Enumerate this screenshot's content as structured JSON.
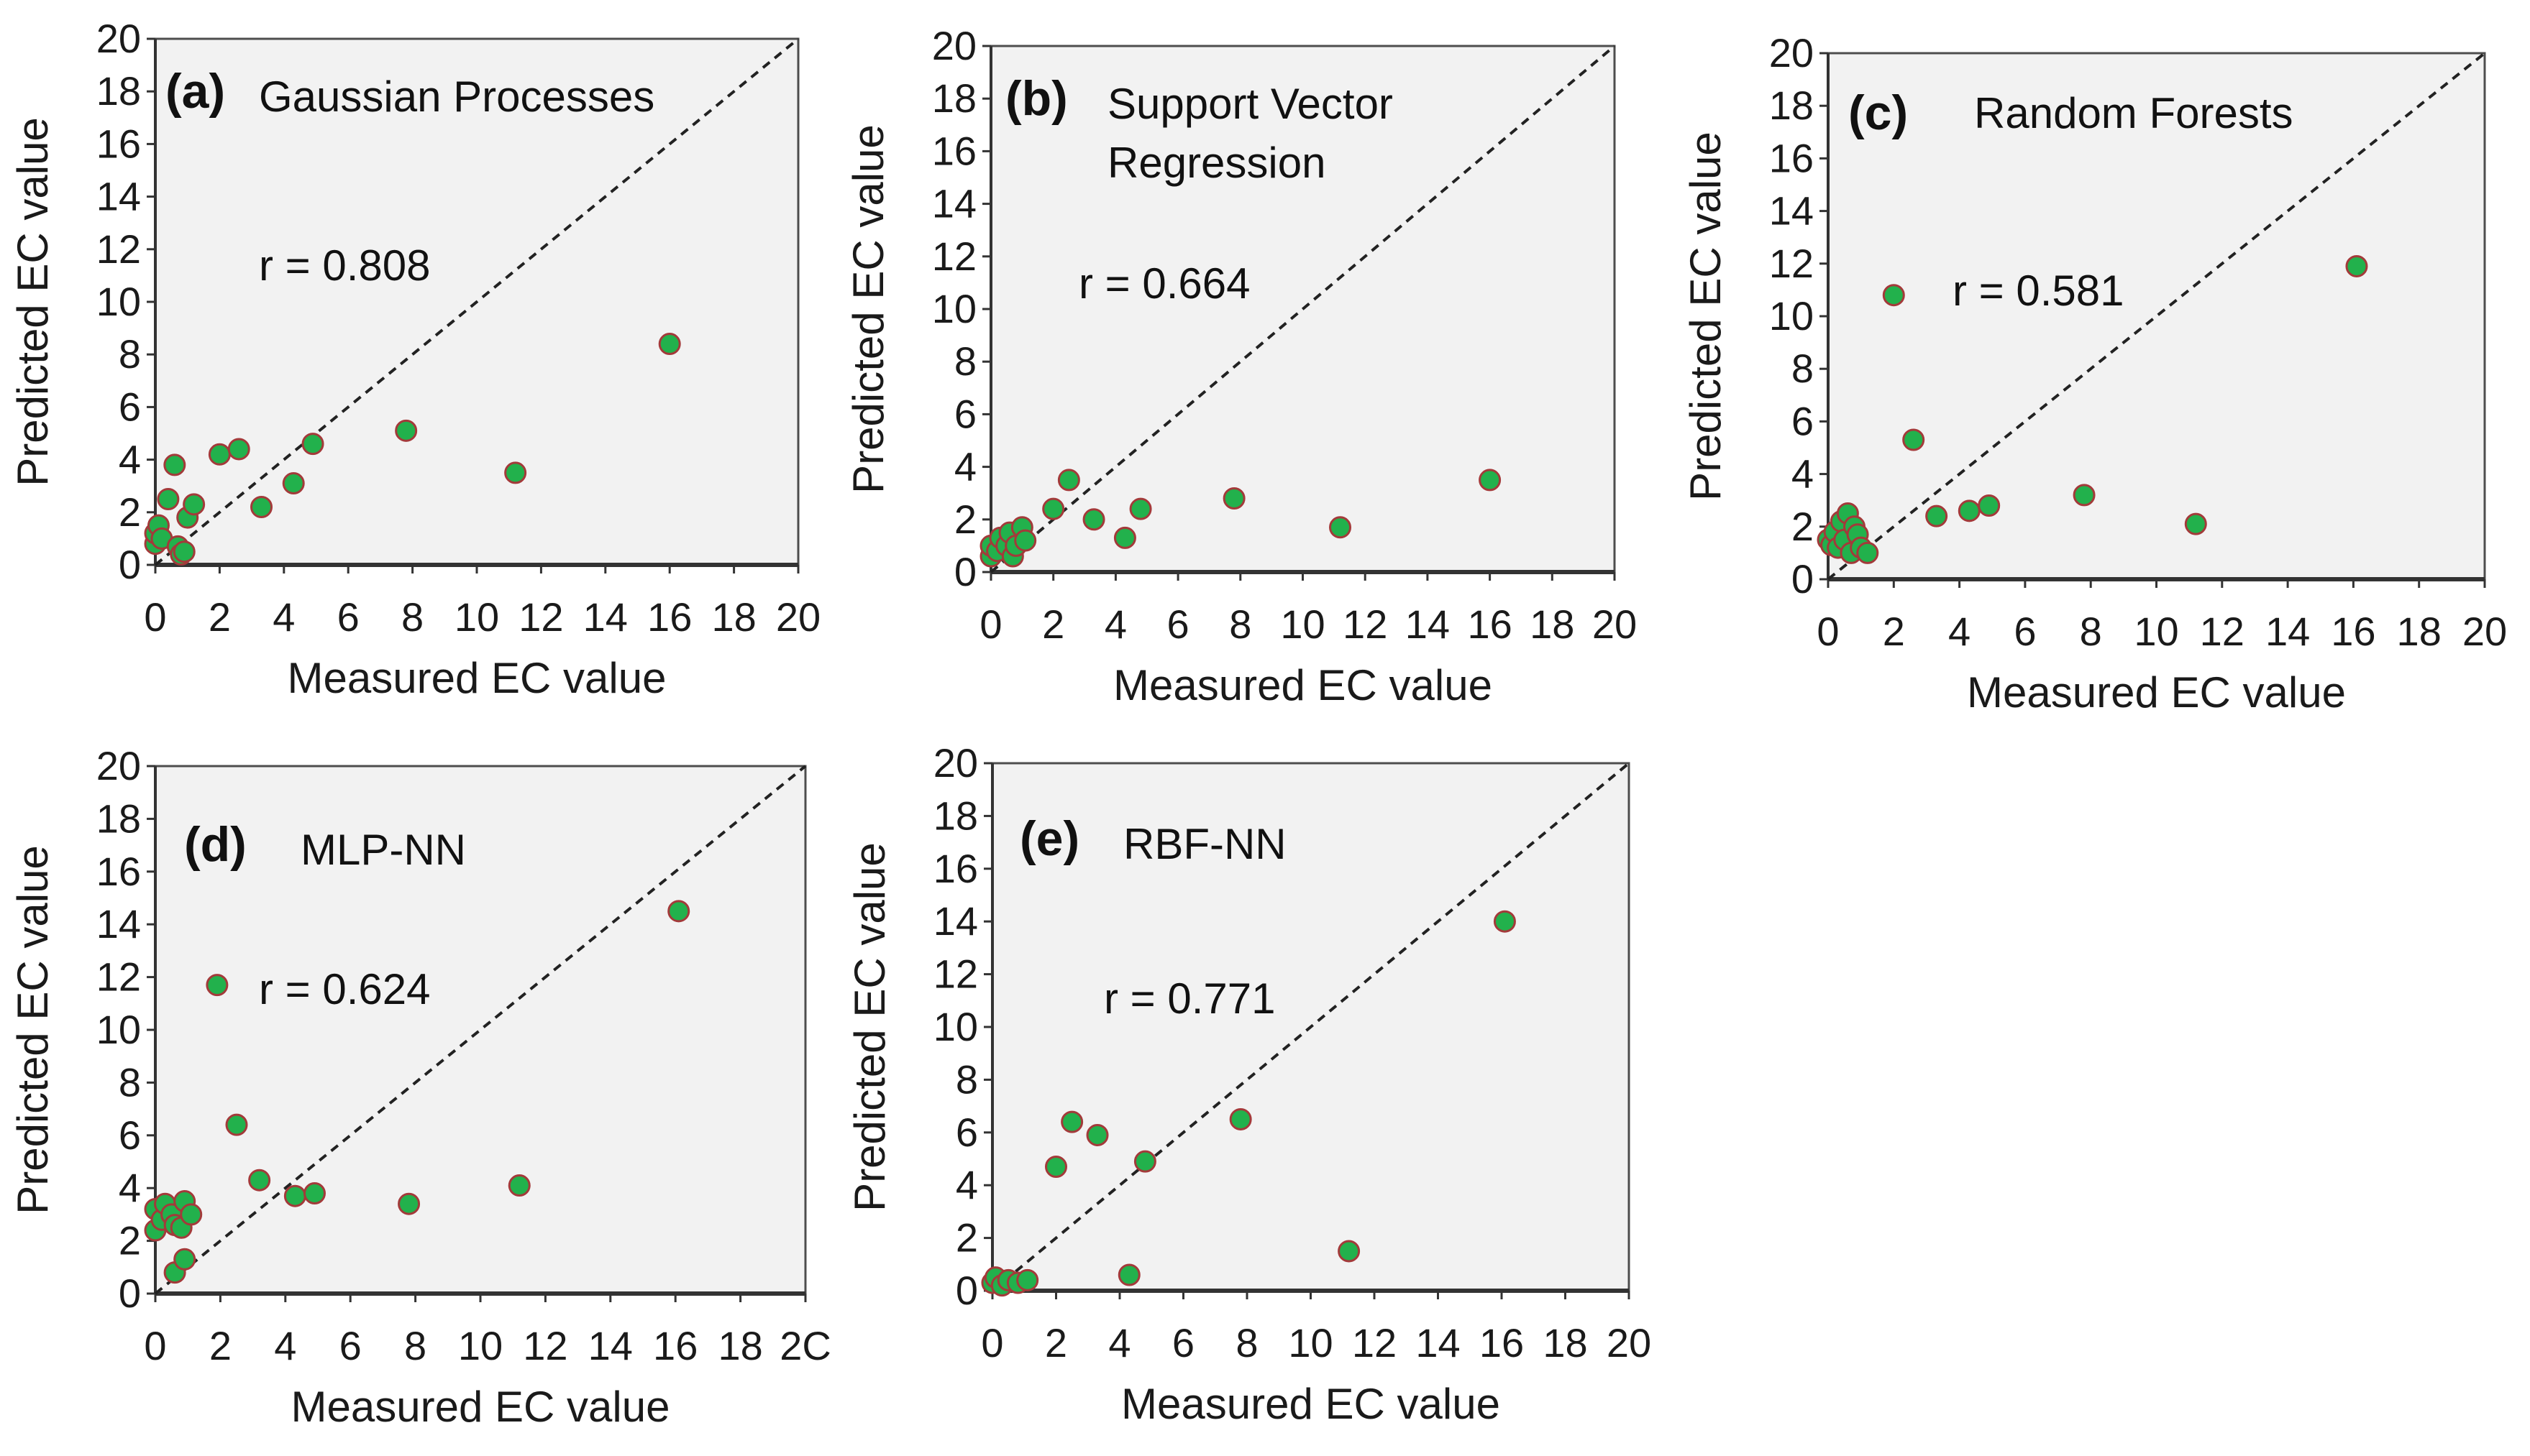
{
  "chart_data": [
    {
      "type": "scatter",
      "panel_tag": "(a)",
      "title_lines": [
        "Gaussian Processes"
      ],
      "r_label": "r = 0.808",
      "xlabel": "Measured EC value",
      "ylabel": "Predicted EC value",
      "xlim": [
        0,
        20
      ],
      "ylim": [
        0,
        20
      ],
      "xticks": [
        "0",
        "2",
        "4",
        "6",
        "8",
        "10",
        "12",
        "14",
        "16",
        "18",
        "20"
      ],
      "yticks": [
        "0",
        "2",
        "4",
        "6",
        "8",
        "10",
        "12",
        "14",
        "16",
        "18",
        "20"
      ],
      "reference_line": "y = x",
      "points": [
        {
          "x": 0.0,
          "y": 0.8
        },
        {
          "x": 0.0,
          "y": 1.2
        },
        {
          "x": 0.1,
          "y": 1.5
        },
        {
          "x": 0.2,
          "y": 1.0
        },
        {
          "x": 0.4,
          "y": 2.5
        },
        {
          "x": 0.6,
          "y": 3.8
        },
        {
          "x": 0.7,
          "y": 0.7
        },
        {
          "x": 0.8,
          "y": 0.4
        },
        {
          "x": 0.9,
          "y": 0.5
        },
        {
          "x": 1.0,
          "y": 1.8
        },
        {
          "x": 1.2,
          "y": 2.3
        },
        {
          "x": 2.0,
          "y": 4.2
        },
        {
          "x": 2.6,
          "y": 4.4
        },
        {
          "x": 3.3,
          "y": 2.2
        },
        {
          "x": 4.3,
          "y": 3.1
        },
        {
          "x": 4.9,
          "y": 4.6
        },
        {
          "x": 7.8,
          "y": 5.1
        },
        {
          "x": 11.2,
          "y": 3.5
        },
        {
          "x": 16.0,
          "y": 8.4
        }
      ]
    },
    {
      "type": "scatter",
      "panel_tag": "(b)",
      "title_lines": [
        "Support Vector",
        "Regression"
      ],
      "r_label": "r = 0.664",
      "xlabel": "Measured EC value",
      "ylabel": "Predicted EC value",
      "xlim": [
        0,
        20
      ],
      "ylim": [
        0,
        20
      ],
      "xticks": [
        "0",
        "2",
        "4",
        "6",
        "8",
        "10",
        "12",
        "14",
        "16",
        "18",
        "20"
      ],
      "yticks": [
        "0",
        "2",
        "4",
        "6",
        "8",
        "10",
        "12",
        "14",
        "16",
        "18",
        "20"
      ],
      "reference_line": "y = x",
      "points": [
        {
          "x": 0.0,
          "y": 0.6
        },
        {
          "x": 0.0,
          "y": 1.0
        },
        {
          "x": 0.2,
          "y": 0.8
        },
        {
          "x": 0.3,
          "y": 1.3
        },
        {
          "x": 0.5,
          "y": 1.0
        },
        {
          "x": 0.6,
          "y": 1.5
        },
        {
          "x": 0.7,
          "y": 0.6
        },
        {
          "x": 0.8,
          "y": 1.0
        },
        {
          "x": 1.0,
          "y": 1.7
        },
        {
          "x": 1.1,
          "y": 1.2
        },
        {
          "x": 2.0,
          "y": 2.4
        },
        {
          "x": 2.5,
          "y": 3.5
        },
        {
          "x": 3.3,
          "y": 2.0
        },
        {
          "x": 4.3,
          "y": 1.3
        },
        {
          "x": 4.8,
          "y": 2.4
        },
        {
          "x": 7.8,
          "y": 2.8
        },
        {
          "x": 11.2,
          "y": 1.7
        },
        {
          "x": 16.0,
          "y": 3.5
        }
      ]
    },
    {
      "type": "scatter",
      "panel_tag": "(c)",
      "title_lines": [
        "Random Forests"
      ],
      "r_label": "r = 0.581",
      "xlabel": "Measured EC value",
      "ylabel": "Predicted EC value",
      "xlim": [
        0,
        20
      ],
      "ylim": [
        0,
        20
      ],
      "xticks": [
        "0",
        "2",
        "4",
        "6",
        "8",
        "10",
        "12",
        "14",
        "16",
        "18",
        "20"
      ],
      "yticks": [
        "0",
        "2",
        "4",
        "6",
        "8",
        "10",
        "12",
        "14",
        "16",
        "18",
        "20"
      ],
      "reference_line": "y = x",
      "points": [
        {
          "x": 0.0,
          "y": 1.5
        },
        {
          "x": 0.1,
          "y": 1.3
        },
        {
          "x": 0.2,
          "y": 1.8
        },
        {
          "x": 0.3,
          "y": 1.2
        },
        {
          "x": 0.4,
          "y": 2.2
        },
        {
          "x": 0.5,
          "y": 1.5
        },
        {
          "x": 0.6,
          "y": 2.5
        },
        {
          "x": 0.7,
          "y": 1.0
        },
        {
          "x": 0.8,
          "y": 2.0
        },
        {
          "x": 0.9,
          "y": 1.7
        },
        {
          "x": 1.0,
          "y": 1.2
        },
        {
          "x": 1.2,
          "y": 1.0
        },
        {
          "x": 2.0,
          "y": 10.8
        },
        {
          "x": 2.6,
          "y": 5.3
        },
        {
          "x": 3.3,
          "y": 2.4
        },
        {
          "x": 4.3,
          "y": 2.6
        },
        {
          "x": 4.9,
          "y": 2.8
        },
        {
          "x": 7.8,
          "y": 3.2
        },
        {
          "x": 11.2,
          "y": 2.1
        },
        {
          "x": 16.1,
          "y": 11.9
        }
      ]
    },
    {
      "type": "scatter",
      "panel_tag": "(d)",
      "title_lines": [
        "MLP-NN"
      ],
      "r_label": "r = 0.624",
      "xlabel": "Measured EC value",
      "ylabel": "Predicted EC value",
      "xlim": [
        0,
        20
      ],
      "ylim": [
        0,
        20
      ],
      "xticks": [
        "0",
        "2",
        "4",
        "6",
        "8",
        "10",
        "12",
        "14",
        "16",
        "18",
        "2С"
      ],
      "yticks": [
        "0",
        "2",
        "4",
        "6",
        "8",
        "10",
        "12",
        "14",
        "16",
        "18",
        "20"
      ],
      "reference_line": "y = x",
      "points": [
        {
          "x": 0.0,
          "y": 2.4
        },
        {
          "x": 0.0,
          "y": 3.2
        },
        {
          "x": 0.2,
          "y": 2.8
        },
        {
          "x": 0.3,
          "y": 3.4
        },
        {
          "x": 0.5,
          "y": 3.0
        },
        {
          "x": 0.6,
          "y": 2.6
        },
        {
          "x": 0.6,
          "y": 0.8
        },
        {
          "x": 0.8,
          "y": 2.5
        },
        {
          "x": 0.9,
          "y": 3.5
        },
        {
          "x": 0.9,
          "y": 1.3
        },
        {
          "x": 1.1,
          "y": 3.0
        },
        {
          "x": 1.9,
          "y": 11.7
        },
        {
          "x": 2.5,
          "y": 6.4
        },
        {
          "x": 3.2,
          "y": 4.3
        },
        {
          "x": 4.3,
          "y": 3.7
        },
        {
          "x": 4.9,
          "y": 3.8
        },
        {
          "x": 7.8,
          "y": 3.4
        },
        {
          "x": 11.2,
          "y": 4.1
        },
        {
          "x": 16.1,
          "y": 14.5
        }
      ]
    },
    {
      "type": "scatter",
      "panel_tag": "(e)",
      "title_lines": [
        "RBF-NN"
      ],
      "r_label": "r = 0.771",
      "xlabel": "Measured EC value",
      "ylabel": "Predicted EC value",
      "xlim": [
        0,
        20
      ],
      "ylim": [
        0,
        20
      ],
      "xticks": [
        "0",
        "2",
        "4",
        "6",
        "8",
        "10",
        "12",
        "14",
        "16",
        "18",
        "20"
      ],
      "yticks": [
        "0",
        "2",
        "4",
        "6",
        "8",
        "10",
        "12",
        "14",
        "16",
        "18",
        "20"
      ],
      "reference_line": "y = x",
      "points": [
        {
          "x": 0.0,
          "y": 0.3
        },
        {
          "x": 0.1,
          "y": 0.5
        },
        {
          "x": 0.3,
          "y": 0.2
        },
        {
          "x": 0.5,
          "y": 0.4
        },
        {
          "x": 0.8,
          "y": 0.3
        },
        {
          "x": 1.1,
          "y": 0.4
        },
        {
          "x": 2.0,
          "y": 4.7
        },
        {
          "x": 2.5,
          "y": 6.4
        },
        {
          "x": 3.3,
          "y": 5.9
        },
        {
          "x": 4.3,
          "y": 0.6
        },
        {
          "x": 4.8,
          "y": 4.9
        },
        {
          "x": 7.8,
          "y": 6.5
        },
        {
          "x": 11.2,
          "y": 1.5
        },
        {
          "x": 16.1,
          "y": 14.0
        }
      ]
    }
  ],
  "style": {
    "panel_background": "#f2f2f2",
    "point_fill": "#22b14c",
    "point_stroke": "#a33a3a",
    "axis_color": "#4d4d4d",
    "reference_line_color": "#222222"
  }
}
